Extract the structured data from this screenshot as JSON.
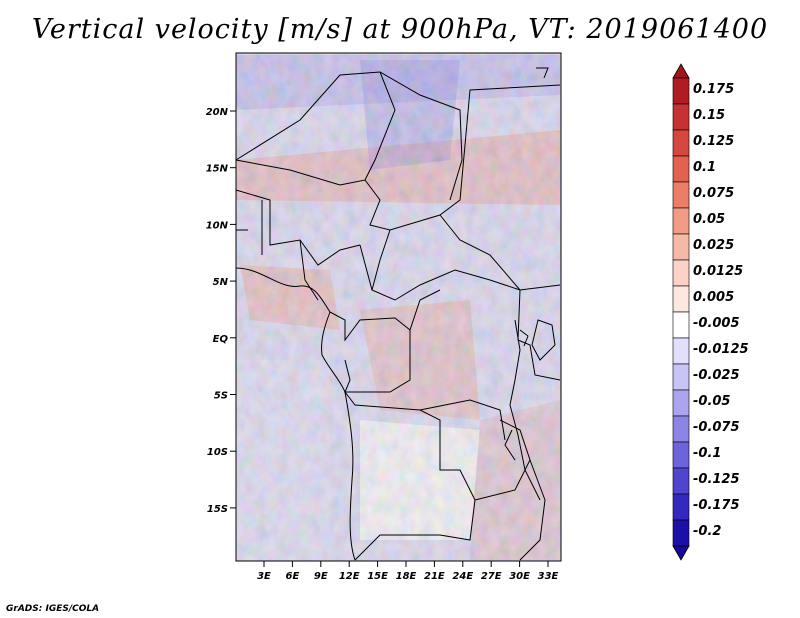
{
  "title": "Vertical velocity [m/s] at 900hPa, VT: 2019061400",
  "footer": "GrADS: IGES/COLA",
  "map": {
    "lat_labels": [
      "20N",
      "15N",
      "10N",
      "5N",
      "EQ",
      "5S",
      "10S",
      "15S"
    ],
    "lon_labels": [
      "3E",
      "6E",
      "9E",
      "12E",
      "15E",
      "18E",
      "21E",
      "24E",
      "27E",
      "30E",
      "33E"
    ]
  },
  "colorbar": {
    "labels": [
      "0.175",
      "0.15",
      "0.125",
      "0.1",
      "0.075",
      "0.05",
      "0.025",
      "0.0125",
      "0.005",
      "-0.005",
      "-0.0125",
      "-0.025",
      "-0.05",
      "-0.075",
      "-0.1",
      "-0.125",
      "-0.175",
      "-0.2"
    ],
    "colors": [
      "#b01c22",
      "#c63234",
      "#d6473f",
      "#e2624f",
      "#ec7d66",
      "#f29c86",
      "#f7b9a7",
      "#fbd2c4",
      "#fde8df",
      "#ffffff",
      "#e1dffc",
      "#c8c4f6",
      "#aba5ef",
      "#8c85e6",
      "#6d64db",
      "#4f45cf",
      "#3427bf",
      "#1c0fa8"
    ],
    "top_color": "#a3151c",
    "bottom_color": "#17099a"
  }
}
